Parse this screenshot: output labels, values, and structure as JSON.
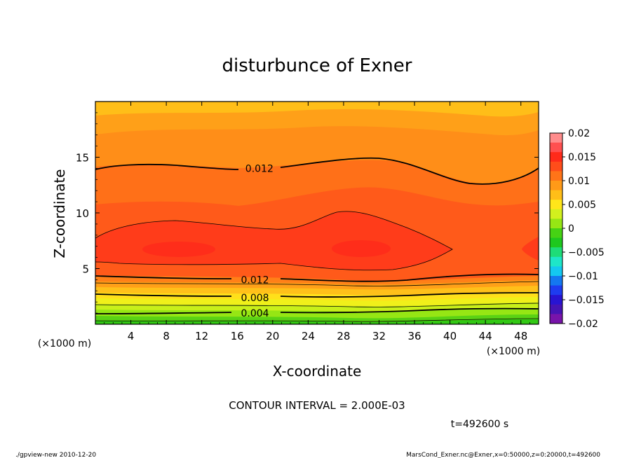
{
  "chart_data": {
    "type": "contour",
    "title": "disturbunce of Exner",
    "xlabel": "X-coordinate",
    "ylabel": "Z-coordinate",
    "x_unit_left": "(×1000 m)",
    "x_unit_right": "(×1000 m)",
    "xlim": [
      0,
      50
    ],
    "ylim": [
      0,
      20
    ],
    "x_ticks": [
      4,
      8,
      12,
      16,
      20,
      24,
      28,
      32,
      36,
      40,
      44,
      48
    ],
    "x_tick_labels": [
      "4",
      "8",
      "12",
      "16",
      "20",
      "24",
      "28",
      "32",
      "36",
      "40",
      "44",
      "48"
    ],
    "y_ticks": [
      5,
      10,
      15
    ],
    "y_tick_labels": [
      "5",
      "10",
      "15"
    ],
    "contour_interval_text": "CONTOUR INTERVAL = 2.000E-03",
    "time_text": "t=492600 s",
    "contour_labels": [
      {
        "text": "0.012",
        "x": 18.5,
        "z": 14.0
      },
      {
        "text": "0.012",
        "x": 18.0,
        "z": 4.0
      },
      {
        "text": "0.008",
        "x": 18.0,
        "z": 2.4
      },
      {
        "text": "0.004",
        "x": 18.0,
        "z": 1.0
      }
    ],
    "colorbar": {
      "ticks": [
        0.02,
        0.015,
        0.01,
        0.005,
        0,
        -0.005,
        -0.01,
        -0.015,
        -0.02
      ],
      "tick_labels": [
        "0.02",
        "0.015",
        "0.01",
        "0.005",
        "0",
        "−0.005",
        "−0.01",
        "−0.015",
        "−0.02"
      ],
      "colors": [
        "#ff8c8c",
        "#ff5050",
        "#ff2a1a",
        "#ff4d1a",
        "#ff7418",
        "#ff9a18",
        "#ffbe18",
        "#ffe61a",
        "#d2f01e",
        "#96e614",
        "#46d214",
        "#1ec81e",
        "#1edc78",
        "#1ee6c8",
        "#14c8f0",
        "#1478f0",
        "#1e3cf0",
        "#2814d2",
        "#4614b4",
        "#7814aa"
      ]
    }
  },
  "footer": {
    "left": "./gpview-new  2010-12-20",
    "right": "MarsCond_Exner.nc@Exner,x=0:50000,z=0:20000,t=492600"
  }
}
